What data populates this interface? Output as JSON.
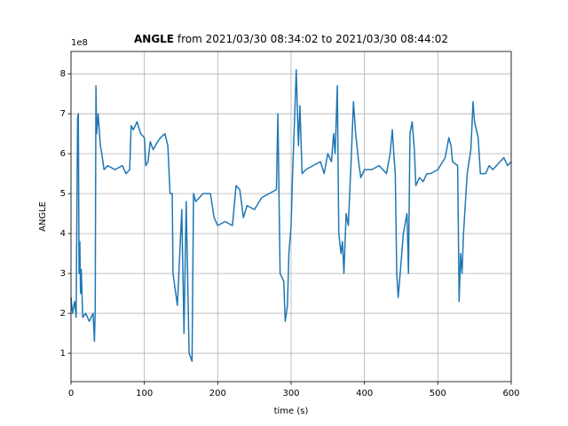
{
  "chart_data": {
    "type": "line",
    "title_bold": "ANGLE",
    "title": "from 2021/03/30 08:34:02 to 2021/03/30 08:44:02",
    "offset_label": "1e8",
    "xlabel": "time (s)",
    "ylabel": "ANGLE",
    "xlim": [
      0,
      600
    ],
    "xticks": [
      0,
      100,
      200,
      300,
      400,
      500,
      600
    ],
    "ylim": [
      0.29,
      8.56
    ],
    "yticks": [
      1,
      2,
      3,
      4,
      5,
      6,
      7,
      8
    ],
    "grid": true,
    "series": [
      {
        "color": "#1f77b4",
        "x": [
          0,
          2,
          5,
          7,
          9,
          10,
          11,
          12,
          13,
          14,
          16,
          20,
          25,
          30,
          32,
          33,
          34,
          35,
          37,
          40,
          42,
          45,
          50,
          60,
          70,
          75,
          80,
          82,
          85,
          90,
          95,
          100,
          102,
          105,
          108,
          112,
          118,
          122,
          128,
          132,
          135,
          138,
          139,
          145,
          151,
          154,
          157,
          161,
          165,
          167,
          170,
          180,
          190,
          195,
          200,
          210,
          220,
          225,
          230,
          235,
          240,
          250,
          260,
          270,
          280,
          282,
          285,
          290,
          292,
          295,
          297,
          300,
          302,
          305,
          307,
          310,
          312,
          315,
          320,
          330,
          340,
          345,
          350,
          355,
          358,
          360,
          363,
          365,
          368,
          370,
          372,
          375,
          378,
          382,
          385,
          388,
          392,
          395,
          400,
          410,
          420,
          430,
          435,
          438,
          440,
          442,
          444,
          446,
          450,
          453,
          455,
          458,
          460,
          462,
          465,
          468,
          470,
          475,
          480,
          485,
          490,
          500,
          510,
          515,
          518,
          520,
          527,
          529,
          531,
          533,
          535,
          540,
          545,
          548,
          550,
          555,
          558,
          565,
          570,
          575,
          580,
          590,
          595,
          600
        ],
        "values": [
          2.4,
          2.0,
          2.3,
          1.9,
          6.9,
          7.0,
          3.0,
          3.8,
          2.5,
          3.1,
          1.9,
          2.0,
          1.8,
          2.0,
          1.3,
          2.1,
          7.7,
          6.5,
          7.0,
          6.2,
          6.0,
          5.6,
          5.7,
          5.6,
          5.7,
          5.5,
          5.6,
          6.7,
          6.6,
          6.8,
          6.5,
          6.4,
          5.7,
          5.8,
          6.3,
          6.1,
          6.3,
          6.4,
          6.5,
          6.2,
          5.0,
          5.0,
          3.0,
          2.2,
          4.6,
          1.5,
          4.8,
          1.0,
          0.8,
          5.0,
          4.8,
          5.0,
          5.0,
          4.4,
          4.2,
          4.3,
          4.2,
          5.2,
          5.1,
          4.4,
          4.7,
          4.6,
          4.9,
          5.0,
          5.1,
          7.0,
          3.0,
          2.8,
          1.8,
          2.2,
          3.5,
          4.2,
          5.5,
          7.0,
          8.1,
          6.2,
          7.2,
          5.5,
          5.6,
          5.7,
          5.8,
          5.5,
          6.0,
          5.8,
          6.5,
          6.0,
          7.7,
          4.0,
          3.5,
          3.8,
          3.0,
          4.5,
          4.2,
          5.9,
          7.3,
          6.5,
          5.8,
          5.4,
          5.6,
          5.6,
          5.7,
          5.5,
          6.0,
          6.6,
          6.0,
          5.5,
          3.0,
          2.4,
          3.3,
          4.0,
          4.2,
          4.5,
          3.0,
          6.5,
          6.8,
          6.1,
          5.2,
          5.4,
          5.3,
          5.5,
          5.5,
          5.6,
          5.9,
          6.4,
          6.2,
          5.8,
          5.7,
          2.3,
          3.5,
          3.0,
          4.0,
          5.5,
          6.1,
          7.3,
          6.8,
          6.4,
          5.5,
          5.5,
          5.7,
          5.6,
          5.7,
          5.9,
          5.7,
          5.8
        ]
      }
    ]
  }
}
